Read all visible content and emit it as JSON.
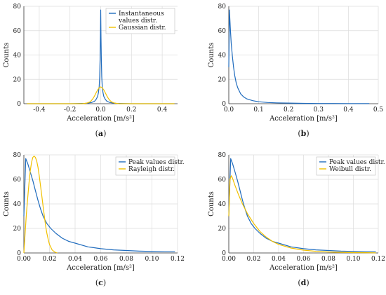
{
  "chart_data": [
    {
      "type": "line",
      "panel": "a",
      "caption": "(a)",
      "xlabel": "Acceleration",
      "xunit": "[m/s²]",
      "ylabel": "Counts",
      "xlim": [
        -0.5,
        0.5
      ],
      "ylim": [
        0,
        80
      ],
      "xticks": [
        -0.4,
        -0.2,
        0,
        0.2,
        0.4
      ],
      "xticklabels": [
        "-0.4",
        "-0.2",
        "0.0",
        "0.2",
        "0.4"
      ],
      "yticks": [
        0,
        20,
        40,
        60,
        80
      ],
      "grid": true,
      "legend": "top-right",
      "series": [
        {
          "name": "Instantaneous values distr.",
          "color": "#1f6bbd",
          "x": [
            -0.48,
            -0.2,
            -0.1,
            -0.06,
            -0.04,
            -0.03,
            -0.02,
            -0.015,
            -0.01,
            -0.007,
            -0.004,
            -0.002,
            0,
            0.002,
            0.004,
            0.007,
            0.01,
            0.015,
            0.02,
            0.03,
            0.04,
            0.06,
            0.1,
            0.2,
            0.48
          ],
          "y": [
            0,
            0,
            0.3,
            1,
            2,
            3.5,
            6,
            9,
            14,
            22,
            36,
            55,
            77,
            55,
            36,
            22,
            14,
            9,
            6,
            3.5,
            2,
            1,
            0.3,
            0,
            0
          ]
        },
        {
          "name": "Gaussian distr.",
          "color": "#f2c100",
          "x": [
            -0.48,
            -0.12,
            -0.09,
            -0.07,
            -0.06,
            -0.05,
            -0.04,
            -0.03,
            -0.02,
            -0.01,
            0,
            0.01,
            0.02,
            0.03,
            0.04,
            0.05,
            0.06,
            0.07,
            0.09,
            0.12,
            0.48
          ],
          "y": [
            0,
            0,
            0.5,
            1.5,
            2.7,
            4.3,
            6.4,
            8.9,
            11.3,
            13.1,
            13.8,
            13.1,
            11.3,
            8.9,
            6.4,
            4.3,
            2.7,
            1.5,
            0.5,
            0,
            0
          ]
        }
      ]
    },
    {
      "type": "line",
      "panel": "b",
      "caption": "(b)",
      "xlabel": "Acceleration",
      "xunit": "[m/s²]",
      "ylabel": "Counts",
      "xlim": [
        0,
        0.5
      ],
      "ylim": [
        0,
        80
      ],
      "xticks": [
        0,
        0.1,
        0.2,
        0.3,
        0.4,
        0.5
      ],
      "xticklabels": [
        "0.0",
        "0.1",
        "0.2",
        "0.3",
        "0.4",
        "0.5"
      ],
      "yticks": [
        0,
        20,
        40,
        60,
        80
      ],
      "grid": true,
      "legend": "none",
      "series": [
        {
          "name": "",
          "color": "#1f6bbd",
          "x": [
            0,
            0.002,
            0.005,
            0.008,
            0.012,
            0.016,
            0.02,
            0.025,
            0.03,
            0.04,
            0.05,
            0.06,
            0.08,
            0.1,
            0.13,
            0.16,
            0.2,
            0.25,
            0.3,
            0.35,
            0.4,
            0.47
          ],
          "y": [
            30,
            77,
            63,
            50,
            39,
            30,
            23,
            17,
            13,
            8,
            5.5,
            4,
            2.5,
            1.6,
            1,
            0.7,
            0.5,
            0.3,
            0.2,
            0.15,
            0.1,
            0.1
          ]
        }
      ]
    },
    {
      "type": "line",
      "panel": "c",
      "caption": "(c)",
      "xlabel": "Acceleration",
      "xunit": "[m/s²]",
      "ylabel": "Counts",
      "xlim": [
        0,
        0.12
      ],
      "ylim": [
        0,
        80
      ],
      "xticks": [
        0,
        0.02,
        0.04,
        0.06,
        0.08,
        0.1,
        0.12
      ],
      "xticklabels": [
        "0.00",
        "0.02",
        "0.04",
        "0.06",
        "0.08",
        "0.10",
        "0.12"
      ],
      "yticks": [
        0,
        20,
        40,
        60,
        80
      ],
      "grid": true,
      "legend": "top-right",
      "series": [
        {
          "name": "Peak values distr.",
          "color": "#1f6bbd",
          "x": [
            0,
            0.0015,
            0.003,
            0.005,
            0.007,
            0.009,
            0.011,
            0.013,
            0.015,
            0.018,
            0.021,
            0.025,
            0.03,
            0.035,
            0.04,
            0.05,
            0.06,
            0.07,
            0.08,
            0.09,
            0.1,
            0.11,
            0.118
          ],
          "y": [
            30,
            77,
            73,
            66,
            59,
            51,
            43,
            36,
            30,
            24,
            20,
            16,
            12,
            9.5,
            8,
            5,
            3.5,
            2.5,
            2,
            1.5,
            1.2,
            1,
            1
          ]
        },
        {
          "name": "Rayleigh distr.",
          "color": "#f2c100",
          "x": [
            0,
            0.001,
            0.002,
            0.003,
            0.004,
            0.005,
            0.006,
            0.007,
            0.008,
            0.009,
            0.01,
            0.011,
            0.012,
            0.013,
            0.014,
            0.015,
            0.016,
            0.017,
            0.018,
            0.019,
            0.02,
            0.022,
            0.024,
            0.026
          ],
          "y": [
            0,
            16,
            32,
            45,
            57,
            67,
            74,
            78,
            79,
            78,
            75,
            70,
            63,
            55,
            47,
            38,
            30,
            22,
            16,
            11,
            7,
            2.5,
            0.8,
            0
          ]
        }
      ]
    },
    {
      "type": "line",
      "panel": "d",
      "caption": "(d)",
      "xlabel": "Acceleration",
      "xunit": "[m/s²]",
      "ylabel": "Counts",
      "xlim": [
        0,
        0.12
      ],
      "ylim": [
        0,
        80
      ],
      "xticks": [
        0,
        0.02,
        0.04,
        0.06,
        0.08,
        0.1,
        0.12
      ],
      "xticklabels": [
        "0.00",
        "0.02",
        "0.04",
        "0.06",
        "0.08",
        "0.10",
        "0.12"
      ],
      "yticks": [
        0,
        20,
        40,
        60,
        80
      ],
      "grid": true,
      "legend": "top-right",
      "series": [
        {
          "name": "Peak values distr.",
          "color": "#1f6bbd",
          "x": [
            0,
            0.0015,
            0.003,
            0.005,
            0.007,
            0.009,
            0.011,
            0.013,
            0.015,
            0.018,
            0.021,
            0.025,
            0.03,
            0.035,
            0.04,
            0.05,
            0.06,
            0.07,
            0.08,
            0.09,
            0.1,
            0.11,
            0.118
          ],
          "y": [
            30,
            77,
            73,
            66,
            59,
            51,
            43,
            36,
            30,
            24,
            20,
            16,
            12,
            9.5,
            8,
            5,
            3.5,
            2.5,
            2,
            1.5,
            1.2,
            1,
            1
          ]
        },
        {
          "name": "Weibull distr.",
          "color": "#f2c100",
          "x": [
            0,
            0.001,
            0.002,
            0.003,
            0.005,
            0.008,
            0.011,
            0.015,
            0.02,
            0.025,
            0.03,
            0.035,
            0.04,
            0.05,
            0.06,
            0.07,
            0.08,
            0.09,
            0.1,
            0.11,
            0.118
          ],
          "y": [
            30,
            60,
            63,
            61,
            55,
            47,
            40,
            32,
            24,
            17.5,
            13,
            9.5,
            7,
            4,
            2.3,
            1.3,
            0.8,
            0.5,
            0.3,
            0.2,
            0.1
          ]
        }
      ]
    }
  ]
}
